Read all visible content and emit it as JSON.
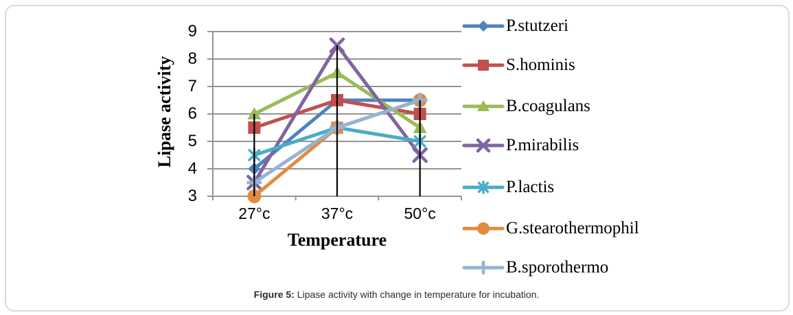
{
  "figure": {
    "caption_label": "Figure 5:",
    "caption_text": "Lipase activity with change in temperature for incubation."
  },
  "chart_data": {
    "type": "line",
    "title": "",
    "x_axis_title": "Temperature",
    "y_axis_title": "Lipase activity",
    "categories": [
      "27°c",
      "37°c",
      "50°c"
    ],
    "y_ticks": [
      3,
      4,
      5,
      6,
      7,
      8,
      9
    ],
    "ylim": [
      3,
      9
    ],
    "grid": "horizontal",
    "legend_position": "right",
    "drop_lines": {
      "show": true,
      "color": "#000000"
    },
    "axis_color": "#949494",
    "series": [
      {
        "name": "P.stutzeri",
        "marker": "diamond",
        "color": "#4F81BD",
        "values": [
          4,
          6.5,
          6.5
        ]
      },
      {
        "name": "S.hominis",
        "marker": "square",
        "color": "#C0504D",
        "values": [
          5.5,
          6.5,
          6
        ]
      },
      {
        "name": "B.coagulans",
        "marker": "triangle",
        "color": "#9BBB59",
        "values": [
          6,
          7.5,
          5.5
        ]
      },
      {
        "name": "P.mirabilis",
        "marker": "x",
        "color": "#8064A2",
        "values": [
          3.5,
          8.5,
          4.5
        ]
      },
      {
        "name": "P.lactis",
        "marker": "asterisk",
        "color": "#4BACC6",
        "values": [
          4.5,
          5.5,
          5
        ]
      },
      {
        "name": "G.stearothermophil",
        "marker": "circle",
        "color": "#E28B3F",
        "values": [
          3,
          5.5,
          6.5
        ]
      },
      {
        "name": "B.sporothermo",
        "marker": "plus",
        "color": "#95B3D7",
        "values": [
          3.5,
          5.5,
          6.5
        ]
      }
    ]
  }
}
